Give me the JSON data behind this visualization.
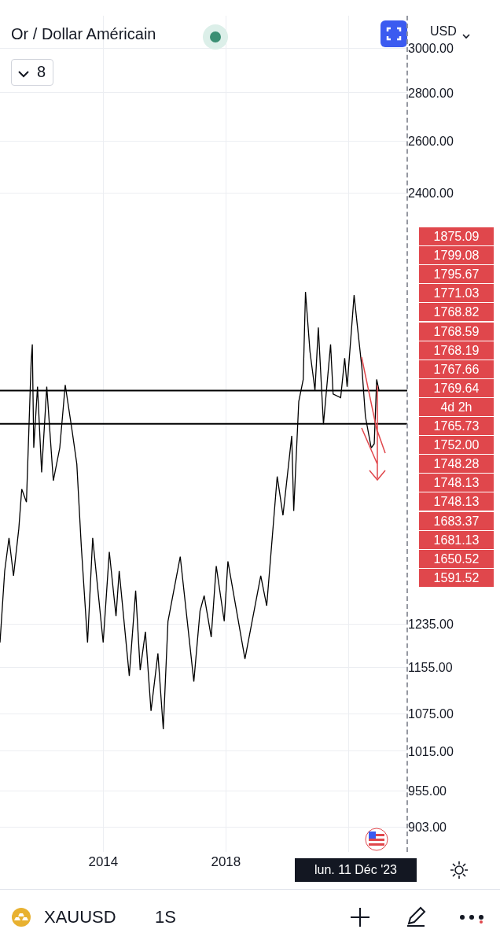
{
  "chart_data": {
    "type": "line",
    "title": "Or / Dollar Américain",
    "log": "y",
    "grid": true,
    "marker": "none",
    "line_style": "solid",
    "x": [
      "2010-08-20",
      "2010-10-15",
      "2010-12-05",
      "2011-01-28",
      "2011-04-01",
      "2011-05-06",
      "2011-07-01",
      "2011-08-26",
      "2011-09-09",
      "2011-09-26",
      "2011-11-10",
      "2011-12-29",
      "2012-02-28",
      "2012-05-16",
      "2012-08-01",
      "2012-10-05",
      "2012-12-28",
      "2013-02-20",
      "2013-04-15",
      "2013-06-28",
      "2013-08-28",
      "2013-12-31",
      "2014-03-14",
      "2014-06-02",
      "2014-07-10",
      "2014-11-07",
      "2015-01-22",
      "2015-03-17",
      "2015-05-18",
      "2015-07-24",
      "2015-10-14",
      "2015-12-17",
      "2016-02-11",
      "2016-07-06",
      "2016-12-15",
      "2017-02-27",
      "2017-04-17",
      "2017-07-10",
      "2017-09-08",
      "2017-12-12",
      "2018-01-25",
      "2018-08-16",
      "2019-02-20",
      "2019-05-02",
      "2019-09-04",
      "2019-11-12",
      "2020-02-24",
      "2020-03-19",
      "2020-05-18",
      "2020-07-10",
      "2020-08-06",
      "2020-09-28",
      "2020-11-27",
      "2021-01-06",
      "2021-03-08",
      "2021-06-01",
      "2021-07-01",
      "2021-09-29",
      "2021-11-16",
      "2021-12-15",
      "2022-03-08",
      "2022-04-18",
      "2022-06-10",
      "2022-07-21",
      "2022-09-28",
      "2022-11-03",
      "2022-12-02",
      "2022-12-30"
    ],
    "series": [
      {
        "color": "#000000",
        "values": [
          1200,
          1340,
          1410,
          1330,
          1430,
          1520,
          1490,
          1850,
          1900,
          1620,
          1780,
          1560,
          1780,
          1540,
          1620,
          1785,
          1660,
          1580,
          1390,
          1200,
          1410,
          1200,
          1380,
          1250,
          1340,
          1140,
          1300,
          1150,
          1220,
          1080,
          1180,
          1050,
          1240,
          1370,
          1130,
          1260,
          1290,
          1210,
          1350,
          1240,
          1360,
          1170,
          1330,
          1270,
          1550,
          1460,
          1650,
          1470,
          1740,
          1800,
          2060,
          1880,
          1770,
          1950,
          1680,
          1900,
          1760,
          1750,
          1860,
          1780,
          2050,
          1950,
          1830,
          1700,
          1620,
          1630,
          1800,
          1769.64
        ]
      }
    ],
    "xlim": [
      "2010-08-20",
      "2023-12-01"
    ],
    "xticks": [
      {
        "value": "2014-01-01",
        "label": "2014"
      },
      {
        "value": "2018-01-01",
        "label": "2018"
      },
      {
        "value": "2022-01-01",
        "label": null
      }
    ],
    "ylim": [
      869,
      3153
    ],
    "yticks": [
      {
        "value": 3000,
        "label": "3000.00"
      },
      {
        "value": 2800,
        "label": "2800.00"
      },
      {
        "value": 2600,
        "label": "2600.00"
      },
      {
        "value": 2400,
        "label": "2400.00"
      },
      {
        "value": 1235,
        "label": "1235.00"
      },
      {
        "value": 1155,
        "label": "1155.00"
      },
      {
        "value": 1075,
        "label": "1075.00"
      },
      {
        "value": 1015,
        "label": "1015.00"
      },
      {
        "value": 955,
        "label": "955.00"
      },
      {
        "value": 903,
        "label": "903.00"
      }
    ],
    "ref_lines": [
      {
        "axis": "y",
        "value": 1769.64,
        "color": "#000000"
      },
      {
        "axis": "y",
        "value": 1681.13,
        "color": "#000000"
      }
    ],
    "annotations": [
      "8",
      "USD",
      "1875.09",
      "1799.08",
      "1795.67",
      "1771.03",
      "1768.82",
      "1768.59",
      "1768.19",
      "1767.66",
      "1769.64",
      "4d 2h",
      "1765.73",
      "1752.00",
      "1748.28",
      "1748.13",
      "1748.13",
      "1683.37",
      "1681.13",
      "1650.52",
      "1591.52",
      "lun. 11 Déc '23",
      "XAUUSD",
      "1S"
    ]
  }
}
